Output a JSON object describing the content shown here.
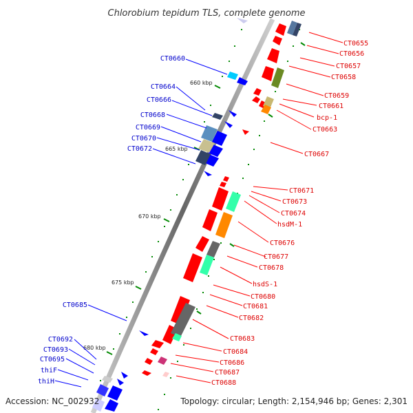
{
  "title": "Chlorobium tepidum TLS, complete genome",
  "footer": {
    "accession": "Accession: NC_002932",
    "summary": "Topology: circular; Length: 2,154,946 bp; Genes: 2,301"
  },
  "colors": {
    "forward": "#ff0000",
    "reverse": "#0000ff",
    "backbone": "#888888",
    "tick": "#008800"
  },
  "kbp_labels": [
    "660 kbp",
    "665 kbp",
    "670 kbp",
    "675 kbp",
    "680 kbp"
  ],
  "right_genes": [
    "CT0655",
    "CT0656",
    "CT0657",
    "CT0658",
    "CT0659",
    "CT0661",
    "bcp-1",
    "CT0663",
    "CT0667",
    "CT0671",
    "CT0673",
    "CT0674",
    "hsdM-1",
    "CT0676",
    "CT0677",
    "CT0678",
    "hsdS-1",
    "CT0680",
    "CT0681",
    "CT0682",
    "CT0683",
    "CT0684",
    "CT0686",
    "CT0687",
    "CT0688"
  ],
  "left_genes": [
    "CT0660",
    "CT0664",
    "CT0666",
    "CT0668",
    "CT0669",
    "CT0670",
    "CT0672",
    "CT0685",
    "CT0692",
    "CT0693",
    "CT0695",
    "thiF",
    "thiH"
  ]
}
